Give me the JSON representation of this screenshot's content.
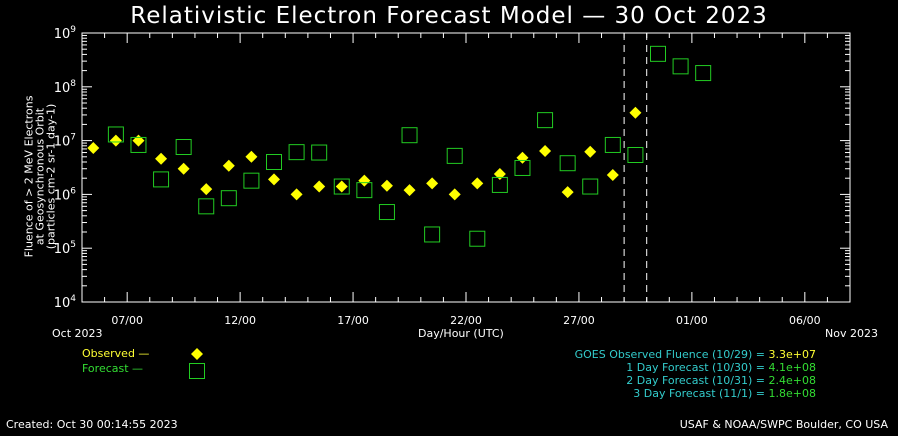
{
  "chart_data": {
    "type": "scatter",
    "title": "Relativistic Electron Forecast Model — 30 Oct 2023",
    "ylabel_lines": [
      "Fluence of > 2 MeV Electrons",
      "at Geosynchronous Orbit",
      "(particles cm-2 sr-1 day-1)"
    ],
    "xlabel": "Day/Hour (UTC)",
    "x_start_label": "Oct 2023",
    "x_end_label": "Nov 2023",
    "xlim_days_from_oct05": [
      0,
      34
    ],
    "ylim": [
      10000,
      1000000000
    ],
    "yscale": "log",
    "y_tick_exponents": [
      "4",
      "5",
      "6",
      "7",
      "8",
      "9"
    ],
    "x_ticks": [
      {
        "day": 2,
        "label": "07/00"
      },
      {
        "day": 7,
        "label": "12/00"
      },
      {
        "day": 12,
        "label": "17/00"
      },
      {
        "day": 17,
        "label": "22/00"
      },
      {
        "day": 22,
        "label": "27/00"
      },
      {
        "day": 27,
        "label": "01/00"
      },
      {
        "day": 32,
        "label": "06/00"
      }
    ],
    "dashed_lines_days": [
      24,
      25
    ],
    "series": [
      {
        "name": "Observed",
        "marker": "diamond",
        "color": "#ffff00",
        "first_day": 0,
        "values": [
          7300000.0,
          10000000.0,
          10000000.0,
          4600000.0,
          3000000.0,
          1250000.0,
          3400000.0,
          5000000.0,
          1900000.0,
          1000000.0,
          1400000.0,
          1400000.0,
          1800000.0,
          1450000.0,
          1200000.0,
          1600000.0,
          1000000.0,
          1600000.0,
          2400000.0,
          4800000.0,
          6400000.0,
          1100000.0,
          6200000.0,
          2300000.0,
          33000000.0
        ]
      },
      {
        "name": "Forecast",
        "marker": "square",
        "color": "#22cc22",
        "first_day": 1,
        "values": [
          13000000.0,
          8300000.0,
          1900000.0,
          7600000.0,
          600000.0,
          850000.0,
          1800000.0,
          4000000.0,
          6100000.0,
          6000000.0,
          1400000.0,
          1200000.0,
          470000.0,
          12600000.0,
          180000.0,
          5200000.0,
          150000.0,
          1500000.0,
          3100000.0,
          24000000.0,
          3800000.0,
          1400000.0,
          8300000.0,
          5400000.0,
          410000000.0,
          240000000.0,
          180000000.0
        ]
      }
    ]
  },
  "legend": {
    "observed": "Observed —",
    "forecast": "Forecast —"
  },
  "summary": [
    {
      "label": "GOES Observed Fluence (10/29) =",
      "value": "3.3e+07",
      "color": "#ffff33"
    },
    {
      "label": "1 Day Forecast (10/30) =",
      "value": "4.1e+08",
      "color": "#33dd33"
    },
    {
      "label": "2 Day Forecast (10/31) =",
      "value": "2.4e+08",
      "color": "#33dd33"
    },
    {
      "label": "3 Day Forecast (11/1) =",
      "value": "1.8e+08",
      "color": "#33dd33"
    }
  ],
  "footer": {
    "created": "Created: Oct 30 00:14:55 2023",
    "credit": "USAF & NOAA/SWPC Boulder, CO USA"
  }
}
